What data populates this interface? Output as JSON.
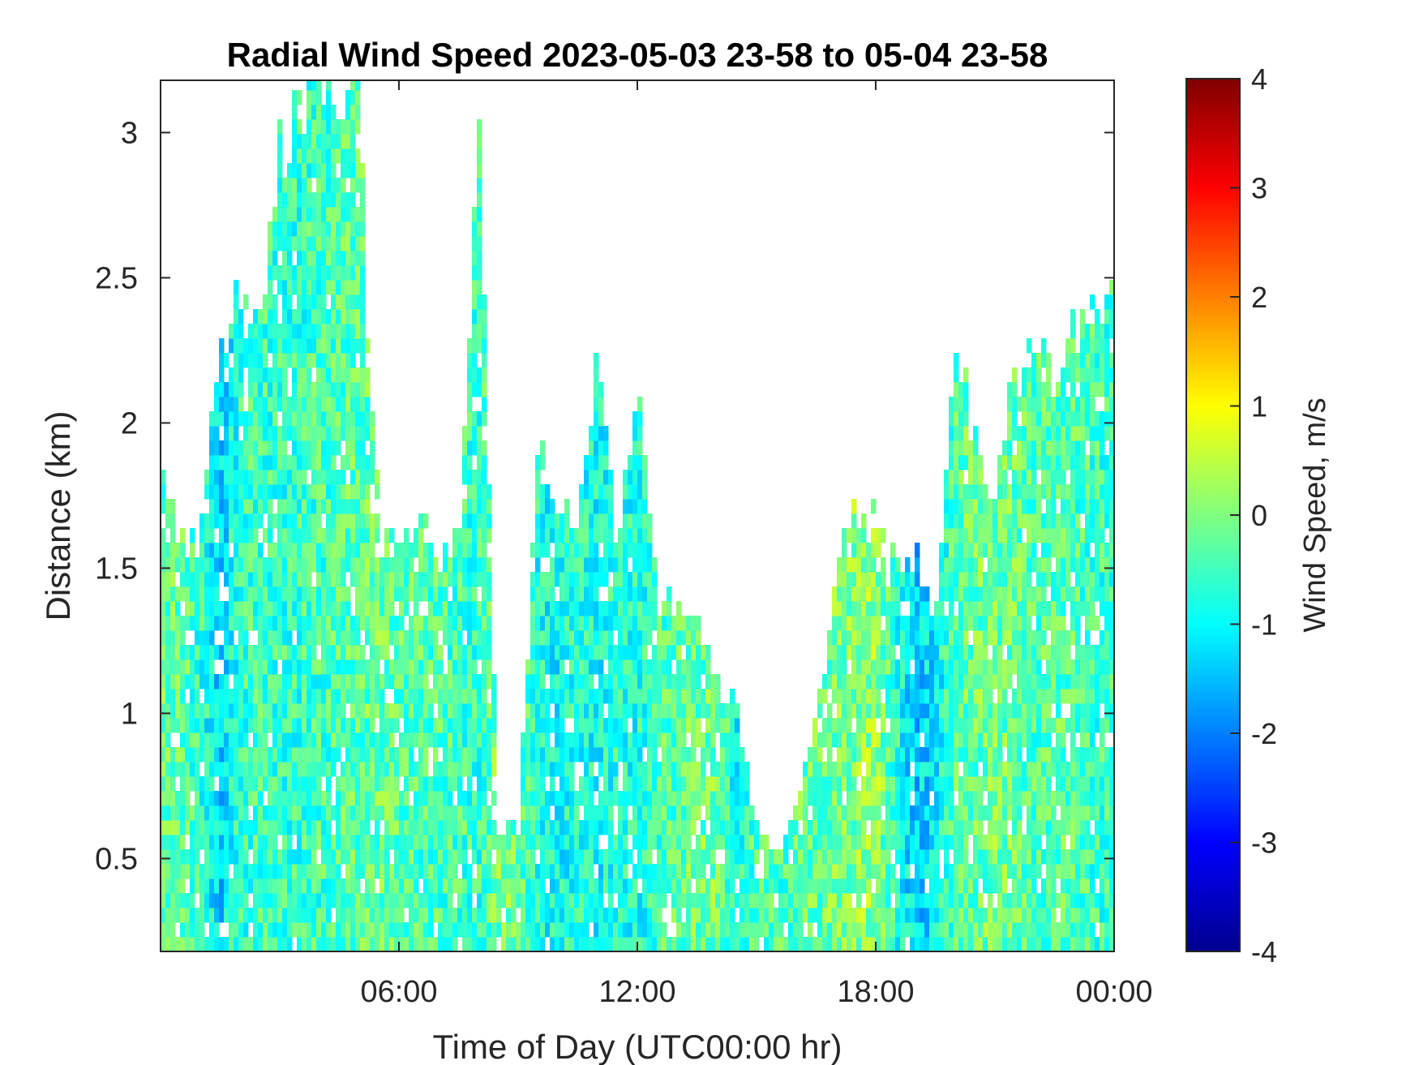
{
  "chart_data": {
    "type": "heatmap",
    "title": "Radial Wind Speed 2023-05-03 23-58 to 05-04 23-58",
    "xlabel": "Time of Day (UTC00:00 hr)",
    "ylabel": "Distance (km)",
    "xlim_hours": [
      0,
      24
    ],
    "ylim": [
      0.18,
      3.18
    ],
    "x_ticks": [
      {
        "value": 6,
        "label": "06:00"
      },
      {
        "value": 12,
        "label": "12:00"
      },
      {
        "value": 18,
        "label": "18:00"
      },
      {
        "value": 24,
        "label": "00:00"
      }
    ],
    "y_ticks": [
      {
        "value": 0.5,
        "label": "0.5"
      },
      {
        "value": 1,
        "label": "1"
      },
      {
        "value": 1.5,
        "label": "1.5"
      },
      {
        "value": 2,
        "label": "2"
      },
      {
        "value": 2.5,
        "label": "2.5"
      },
      {
        "value": 3,
        "label": "3"
      }
    ],
    "colorbar": {
      "label": "Wind Speed, m/s",
      "range": [
        -4,
        4
      ],
      "ticks": [
        {
          "value": 4,
          "label": "4"
        },
        {
          "value": 3,
          "label": "3"
        },
        {
          "value": 2,
          "label": "2"
        },
        {
          "value": 1,
          "label": "1"
        },
        {
          "value": 0,
          "label": "0"
        },
        {
          "value": -1,
          "label": "-1"
        },
        {
          "value": -2,
          "label": "-2"
        },
        {
          "value": -3,
          "label": "-3"
        },
        {
          "value": -4,
          "label": "-4"
        }
      ],
      "colormap": "jet"
    },
    "data_extent": [
      {
        "t": 0.0,
        "top": 1.9,
        "mean": -0.2
      },
      {
        "t": 0.5,
        "top": 1.6,
        "mean": -0.3
      },
      {
        "t": 1.0,
        "top": 1.6,
        "mean": -0.6
      },
      {
        "t": 1.5,
        "top": 2.3,
        "mean": -1.3
      },
      {
        "t": 2.0,
        "top": 2.5,
        "mean": -0.6
      },
      {
        "t": 2.5,
        "top": 2.4,
        "mean": -0.5
      },
      {
        "t": 3.0,
        "top": 3.0,
        "mean": -0.6
      },
      {
        "t": 3.5,
        "top": 3.18,
        "mean": -0.6
      },
      {
        "t": 4.0,
        "top": 3.18,
        "mean": -0.5
      },
      {
        "t": 4.5,
        "top": 3.18,
        "mean": -0.4
      },
      {
        "t": 5.0,
        "top": 3.18,
        "mean": -0.3
      },
      {
        "t": 5.5,
        "top": 1.65,
        "mean": -0.2
      },
      {
        "t": 6.0,
        "top": 1.6,
        "mean": -0.3
      },
      {
        "t": 6.5,
        "top": 1.7,
        "mean": -0.4
      },
      {
        "t": 7.0,
        "top": 1.6,
        "mean": -0.4
      },
      {
        "t": 7.5,
        "top": 1.55,
        "mean": -0.5
      },
      {
        "t": 8.0,
        "top": 3.18,
        "mean": -0.6
      },
      {
        "t": 8.5,
        "top": 0.6,
        "mean": -0.1
      },
      {
        "t": 9.0,
        "top": 0.6,
        "mean": -0.2
      },
      {
        "t": 9.5,
        "top": 1.9,
        "mean": -0.8
      },
      {
        "t": 10.0,
        "top": 1.8,
        "mean": -0.9
      },
      {
        "t": 10.5,
        "top": 1.6,
        "mean": -0.7
      },
      {
        "t": 11.0,
        "top": 2.3,
        "mean": -0.9
      },
      {
        "t": 11.5,
        "top": 1.6,
        "mean": -0.7
      },
      {
        "t": 12.0,
        "top": 2.2,
        "mean": -0.8
      },
      {
        "t": 12.5,
        "top": 1.4,
        "mean": -0.5
      },
      {
        "t": 13.0,
        "top": 1.4,
        "mean": -0.3
      },
      {
        "t": 13.5,
        "top": 1.4,
        "mean": -0.2
      },
      {
        "t": 14.0,
        "top": 1.1,
        "mean": -0.1
      },
      {
        "t": 14.5,
        "top": 1.0,
        "mean": -0.9
      },
      {
        "t": 15.0,
        "top": 0.6,
        "mean": -0.4
      },
      {
        "t": 15.5,
        "top": 0.5,
        "mean": -0.5
      },
      {
        "t": 16.0,
        "top": 0.7,
        "mean": -0.3
      },
      {
        "t": 16.5,
        "top": 1.0,
        "mean": -0.2
      },
      {
        "t": 17.0,
        "top": 1.5,
        "mean": -0.1
      },
      {
        "t": 17.5,
        "top": 1.7,
        "mean": 0.0
      },
      {
        "t": 18.0,
        "top": 1.7,
        "mean": 0.2
      },
      {
        "t": 18.5,
        "top": 1.5,
        "mean": -0.7
      },
      {
        "t": 19.0,
        "top": 1.6,
        "mean": -1.4
      },
      {
        "t": 19.5,
        "top": 1.3,
        "mean": -1.1
      },
      {
        "t": 20.0,
        "top": 2.3,
        "mean": -0.3
      },
      {
        "t": 20.5,
        "top": 2.0,
        "mean": -0.2
      },
      {
        "t": 21.0,
        "top": 1.8,
        "mean": -0.1
      },
      {
        "t": 21.5,
        "top": 2.2,
        "mean": -0.2
      },
      {
        "t": 22.0,
        "top": 2.3,
        "mean": -0.4
      },
      {
        "t": 22.5,
        "top": 2.2,
        "mean": -0.3
      },
      {
        "t": 23.0,
        "top": 2.4,
        "mean": -0.4
      },
      {
        "t": 23.5,
        "top": 2.4,
        "mean": -0.5
      },
      {
        "t": 24.0,
        "top": 2.4,
        "mean": -0.6
      }
    ]
  }
}
